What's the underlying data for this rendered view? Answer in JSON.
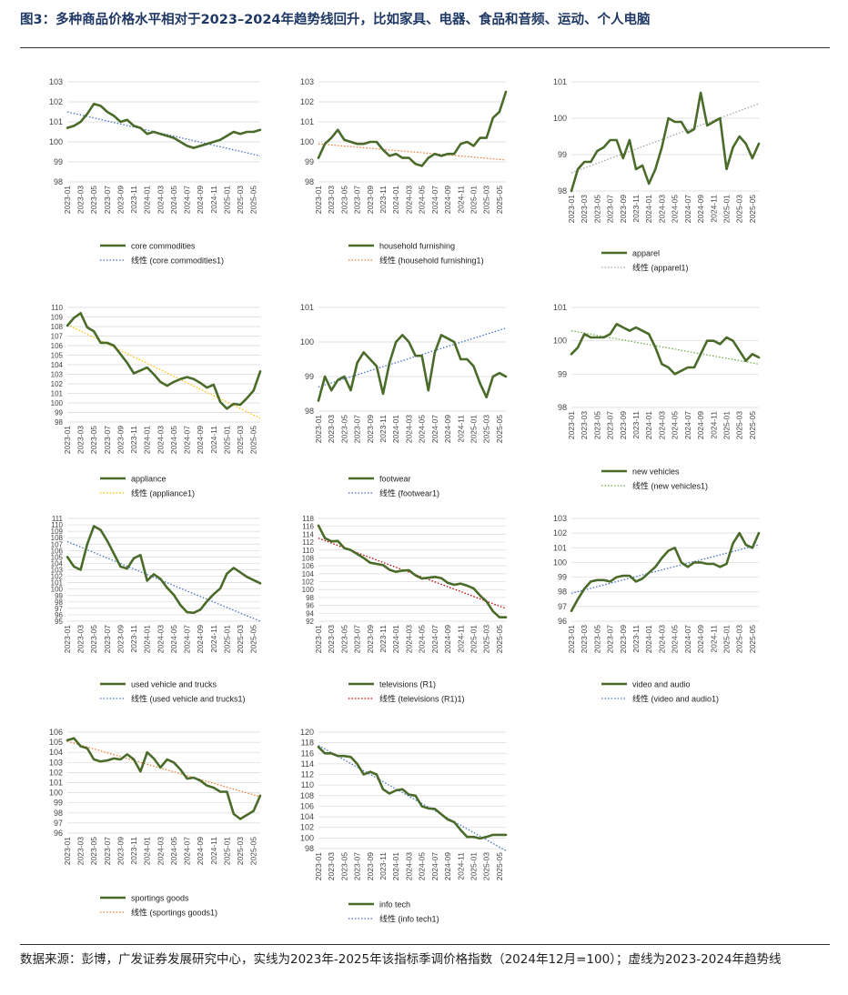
{
  "title": "图3：多种商品价格水平相对于2023–2024年趋势线回升，比如家具、电器、食品和音频、运动、个人电脑",
  "footer": "数据来源：彭博，广发证券发展研究中心，实线为2023年-2025年该指标季调价格指数（2024年12月=100）；虚线为2023-2024年趋势线",
  "colors": {
    "actual_line": "#4a6b2a",
    "trend_line": "#4472c4",
    "title": "#1f3864"
  },
  "x_tick_labels": [
    "2023-01",
    "2023-03",
    "2023-05",
    "2023-07",
    "2023-09",
    "2023-11",
    "2024-01",
    "2024-03",
    "2024-05",
    "2024-07",
    "2024-09",
    "2024-11",
    "2025-01",
    "2025-03",
    "2025-05"
  ],
  "chart_data": [
    {
      "type": "line",
      "ylim": [
        98,
        103
      ],
      "yticks": [
        98,
        99,
        100,
        101,
        102,
        103
      ],
      "series": [
        {
          "name": "core commodities",
          "style": "solid",
          "values": [
            100.7,
            100.8,
            101.0,
            101.4,
            101.9,
            101.8,
            101.5,
            101.3,
            101.0,
            101.1,
            100.8,
            100.7,
            100.4,
            100.5,
            100.4,
            100.3,
            100.2,
            100.0,
            99.8,
            99.7,
            99.8,
            99.9,
            100.0,
            100.1,
            100.3,
            100.5,
            100.4,
            100.5,
            100.5,
            100.6
          ]
        },
        {
          "name": "线性 (core commodities1)",
          "style": "dotted",
          "color": "#4472c4",
          "values": [
            101.5,
            99.3
          ]
        }
      ]
    },
    {
      "type": "line",
      "ylim": [
        98,
        103
      ],
      "yticks": [
        98,
        99,
        100,
        101,
        102,
        103
      ],
      "series": [
        {
          "name": "household furnishing",
          "style": "solid",
          "values": [
            99.2,
            99.9,
            100.2,
            100.6,
            100.1,
            100.0,
            99.9,
            99.9,
            100.0,
            100.0,
            99.6,
            99.3,
            99.4,
            99.2,
            99.2,
            98.9,
            98.8,
            99.2,
            99.4,
            99.3,
            99.4,
            99.4,
            99.9,
            100.0,
            99.8,
            100.2,
            100.2,
            101.2,
            101.5,
            102.5
          ]
        },
        {
          "name": "线性 (household furnishing1)",
          "style": "dotted",
          "color": "#ed7d31",
          "values": [
            99.9,
            99.1
          ]
        }
      ]
    },
    {
      "type": "line",
      "ylim": [
        98,
        101
      ],
      "yticks": [
        98,
        99,
        100,
        101
      ],
      "series": [
        {
          "name": "apparel",
          "style": "solid",
          "values": [
            98.0,
            98.6,
            98.8,
            98.8,
            99.1,
            99.2,
            99.4,
            99.4,
            98.9,
            99.4,
            98.6,
            98.7,
            98.2,
            98.6,
            99.2,
            100.0,
            99.9,
            99.9,
            99.6,
            99.7,
            100.7,
            99.8,
            99.9,
            100.0,
            98.6,
            99.2,
            99.5,
            99.3,
            98.9,
            99.3
          ]
        },
        {
          "name": "线性 (apparel1)",
          "style": "dotted",
          "color": "#a5a5a5",
          "values": [
            98.5,
            100.4
          ]
        }
      ]
    },
    {
      "type": "line",
      "ylim": [
        98,
        110
      ],
      "yticks": [
        98,
        99,
        100,
        101,
        102,
        103,
        104,
        105,
        106,
        107,
        108,
        109,
        110
      ],
      "series": [
        {
          "name": "appliance",
          "style": "solid",
          "values": [
            108.1,
            108.9,
            109.4,
            107.9,
            107.5,
            106.3,
            106.3,
            106.0,
            105.1,
            104.2,
            103.1,
            103.4,
            103.7,
            103.0,
            102.2,
            101.8,
            102.2,
            102.5,
            102.7,
            102.5,
            102.1,
            101.6,
            101.9,
            100.1,
            99.4,
            99.9,
            99.8,
            100.5,
            101.3,
            103.3
          ]
        },
        {
          "name": "线性 (appliance1)",
          "style": "dotted",
          "color": "#ffc000",
          "values": [
            108.2,
            98.4
          ]
        }
      ]
    },
    {
      "type": "line",
      "ylim": [
        98,
        101
      ],
      "yticks": [
        98,
        99,
        100,
        101
      ],
      "series": [
        {
          "name": "footwear",
          "style": "solid",
          "values": [
            98.3,
            99.0,
            98.6,
            98.9,
            99.0,
            98.6,
            99.4,
            99.7,
            99.5,
            99.3,
            98.5,
            99.4,
            100.0,
            100.2,
            100.0,
            99.6,
            99.6,
            98.6,
            99.7,
            100.2,
            100.1,
            100.0,
            99.5,
            99.5,
            99.3,
            98.8,
            98.4,
            99.0,
            99.1,
            99.0
          ]
        },
        {
          "name": "线性 (footwear1)",
          "style": "dotted",
          "color": "#4472c4",
          "values": [
            98.7,
            100.4
          ]
        }
      ]
    },
    {
      "type": "line",
      "ylim": [
        98,
        101
      ],
      "yticks": [
        98,
        99,
        100,
        101
      ],
      "series": [
        {
          "name": "new vehicles",
          "style": "solid",
          "values": [
            99.6,
            99.8,
            100.2,
            100.1,
            100.1,
            100.1,
            100.2,
            100.5,
            100.4,
            100.3,
            100.4,
            100.3,
            100.2,
            99.8,
            99.3,
            99.2,
            99.0,
            99.1,
            99.2,
            99.2,
            99.6,
            100.0,
            100.0,
            99.9,
            100.1,
            100.0,
            99.7,
            99.4,
            99.6,
            99.5
          ]
        },
        {
          "name": "线性 (new vehicles1)",
          "style": "dotted",
          "color": "#70ad47",
          "values": [
            100.3,
            99.3
          ]
        }
      ]
    },
    {
      "type": "line",
      "ylim": [
        95,
        111
      ],
      "yticks": [
        95,
        96,
        97,
        98,
        99,
        100,
        101,
        102,
        103,
        104,
        105,
        106,
        107,
        108,
        109,
        110,
        111
      ],
      "series": [
        {
          "name": "used vehicle and trucks",
          "style": "solid",
          "values": [
            105.0,
            103.5,
            103.0,
            107.0,
            109.8,
            109.2,
            107.5,
            105.5,
            103.5,
            103.2,
            104.8,
            105.3,
            101.3,
            102.3,
            101.6,
            100.2,
            99.1,
            97.5,
            96.4,
            96.3,
            96.8,
            98.1,
            99.2,
            100.1,
            102.4,
            103.3,
            102.6,
            101.9,
            101.4,
            100.9
          ]
        },
        {
          "name": "线性 (used vehicle and trucks1)",
          "style": "dotted",
          "color": "#4472c4",
          "values": [
            107.4,
            95.0
          ]
        }
      ]
    },
    {
      "type": "line",
      "ylim": [
        92,
        118
      ],
      "yticks": [
        92,
        94,
        96,
        98,
        100,
        102,
        104,
        106,
        108,
        110,
        112,
        114,
        116,
        118
      ],
      "series": [
        {
          "name": "televisions (R1)",
          "style": "solid",
          "values": [
            116.2,
            113.0,
            112.2,
            112.3,
            110.5,
            110.0,
            109.0,
            108.0,
            106.8,
            106.5,
            106.2,
            105.0,
            104.5,
            104.8,
            104.9,
            103.6,
            102.8,
            103.0,
            103.2,
            102.9,
            101.7,
            101.2,
            101.5,
            101.0,
            100.3,
            98.5,
            97.0,
            94.5,
            93.0,
            93.0
          ]
        },
        {
          "name": "线性 (televisions (R1)1)",
          "style": "dotted",
          "color": "#c00000",
          "values": [
            113.0,
            95.2
          ]
        }
      ]
    },
    {
      "type": "line",
      "ylim": [
        96,
        103
      ],
      "yticks": [
        96,
        97,
        98,
        99,
        100,
        101,
        102,
        103
      ],
      "series": [
        {
          "name": "video and audio",
          "style": "solid",
          "values": [
            96.7,
            97.5,
            98.2,
            98.7,
            98.8,
            98.8,
            98.7,
            99.0,
            99.1,
            99.1,
            98.7,
            98.9,
            99.3,
            99.7,
            100.3,
            100.8,
            101.0,
            100.0,
            99.7,
            100.0,
            100.0,
            99.9,
            99.9,
            99.7,
            99.9,
            101.3,
            102.0,
            101.2,
            101.0,
            102.0
          ]
        },
        {
          "name": "线性 (video and audio1)",
          "style": "dotted",
          "color": "#4472c4",
          "values": [
            97.9,
            101.2
          ]
        }
      ]
    },
    {
      "type": "line",
      "ylim": [
        96,
        106
      ],
      "yticks": [
        96,
        97,
        98,
        99,
        100,
        101,
        102,
        103,
        104,
        105,
        106
      ],
      "series": [
        {
          "name": "sportings goods",
          "style": "solid",
          "values": [
            105.2,
            105.4,
            104.6,
            104.4,
            103.3,
            103.1,
            103.2,
            103.4,
            103.3,
            103.8,
            103.3,
            102.1,
            104.0,
            103.4,
            102.5,
            103.3,
            103.0,
            102.3,
            101.4,
            101.5,
            101.2,
            100.7,
            100.5,
            100.1,
            100.1,
            97.9,
            97.4,
            97.8,
            98.2,
            99.7
          ]
        },
        {
          "name": "线性 (sportings goods1)",
          "style": "dotted",
          "color": "#ed7d31",
          "values": [
            105.1,
            99.6
          ]
        }
      ]
    },
    {
      "type": "line",
      "ylim": [
        98,
        120
      ],
      "yticks": [
        98,
        100,
        102,
        104,
        106,
        108,
        110,
        112,
        114,
        116,
        118,
        120
      ],
      "series": [
        {
          "name": "info tech",
          "style": "solid",
          "values": [
            117.2,
            116.0,
            116.0,
            115.5,
            115.5,
            115.3,
            114.0,
            112.0,
            112.5,
            112.0,
            109.2,
            108.4,
            109.0,
            109.2,
            108.2,
            108.0,
            106.0,
            105.6,
            105.5,
            104.5,
            103.5,
            103.0,
            101.5,
            100.2,
            100.2,
            99.9,
            100.2,
            100.6,
            100.6,
            100.6
          ]
        },
        {
          "name": "线性 (info tech1)",
          "style": "dotted",
          "color": "#4472c4",
          "values": [
            117.5,
            97.6
          ]
        }
      ]
    }
  ]
}
